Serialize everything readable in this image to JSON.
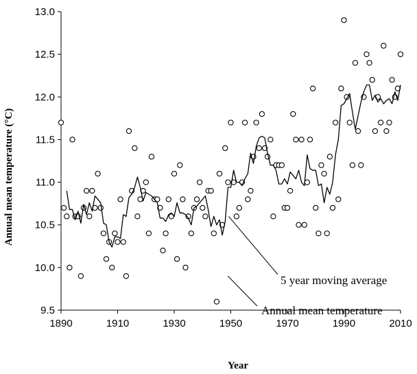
{
  "chart_data": {
    "type": "scatter",
    "title": "",
    "xlabel": "Year",
    "ylabel": "Annual mean temperature (°C)",
    "xlim": [
      1890,
      2010
    ],
    "ylim": [
      9.5,
      13.0
    ],
    "x_ticks": [
      "1890",
      "1910",
      "1930",
      "1950",
      "1970",
      "1990",
      "2010"
    ],
    "y_ticks": [
      "9.5",
      "10.0",
      "10.5",
      "11.0",
      "11.5",
      "12.0",
      "12.5",
      "13.0"
    ],
    "grid": false,
    "annotations": [
      {
        "text": "5 year moving average",
        "target": [
          1949,
          10.6
        ]
      },
      {
        "text": "Annual  mean temperature",
        "target": [
          1948,
          9.9
        ]
      }
    ],
    "series": [
      {
        "name": "Annual  mean temperature",
        "marker": "open-circle",
        "points": [
          [
            1890,
            11.7
          ],
          [
            1891,
            10.7
          ],
          [
            1892,
            10.6
          ],
          [
            1893,
            10.0
          ],
          [
            1894,
            11.5
          ],
          [
            1895,
            10.6
          ],
          [
            1896,
            10.6
          ],
          [
            1897,
            9.9
          ],
          [
            1898,
            10.7
          ],
          [
            1899,
            10.9
          ],
          [
            1900,
            10.6
          ],
          [
            1901,
            10.9
          ],
          [
            1902,
            10.7
          ],
          [
            1903,
            11.1
          ],
          [
            1904,
            10.7
          ],
          [
            1905,
            10.4
          ],
          [
            1906,
            10.1
          ],
          [
            1907,
            10.3
          ],
          [
            1908,
            10.0
          ],
          [
            1909,
            10.4
          ],
          [
            1910,
            10.3
          ],
          [
            1911,
            10.8
          ],
          [
            1912,
            10.3
          ],
          [
            1913,
            9.9
          ],
          [
            1914,
            11.6
          ],
          [
            1915,
            10.9
          ],
          [
            1916,
            11.4
          ],
          [
            1917,
            10.6
          ],
          [
            1918,
            10.8
          ],
          [
            1919,
            10.9
          ],
          [
            1920,
            11.0
          ],
          [
            1921,
            10.4
          ],
          [
            1922,
            11.3
          ],
          [
            1923,
            10.8
          ],
          [
            1924,
            10.8
          ],
          [
            1925,
            10.7
          ],
          [
            1926,
            10.2
          ],
          [
            1927,
            10.4
          ],
          [
            1928,
            10.8
          ],
          [
            1929,
            10.6
          ],
          [
            1930,
            11.1
          ],
          [
            1931,
            10.1
          ],
          [
            1932,
            11.2
          ],
          [
            1933,
            10.8
          ],
          [
            1934,
            10.0
          ],
          [
            1935,
            10.6
          ],
          [
            1936,
            10.4
          ],
          [
            1937,
            10.7
          ],
          [
            1938,
            10.8
          ],
          [
            1939,
            11.0
          ],
          [
            1940,
            10.7
          ],
          [
            1941,
            10.6
          ],
          [
            1942,
            10.9
          ],
          [
            1943,
            10.9
          ],
          [
            1944,
            10.4
          ],
          [
            1945,
            9.6
          ],
          [
            1946,
            11.1
          ],
          [
            1947,
            10.5
          ],
          [
            1948,
            11.4
          ],
          [
            1949,
            11.0
          ],
          [
            1950,
            11.7
          ],
          [
            1951,
            11.0
          ],
          [
            1952,
            10.6
          ],
          [
            1953,
            10.7
          ],
          [
            1954,
            11.0
          ],
          [
            1955,
            11.7
          ],
          [
            1956,
            10.8
          ],
          [
            1957,
            10.9
          ],
          [
            1958,
            11.3
          ],
          [
            1959,
            11.7
          ],
          [
            1960,
            11.4
          ],
          [
            1961,
            11.8
          ],
          [
            1962,
            11.4
          ],
          [
            1963,
            11.3
          ],
          [
            1964,
            11.5
          ],
          [
            1965,
            10.6
          ],
          [
            1966,
            11.2
          ],
          [
            1967,
            11.2
          ],
          [
            1968,
            11.2
          ],
          [
            1969,
            10.7
          ],
          [
            1970,
            10.7
          ],
          [
            1971,
            10.9
          ],
          [
            1972,
            11.8
          ],
          [
            1973,
            11.5
          ],
          [
            1974,
            10.5
          ],
          [
            1975,
            11.5
          ],
          [
            1976,
            10.5
          ],
          [
            1977,
            11.0
          ],
          [
            1978,
            11.5
          ],
          [
            1979,
            12.1
          ],
          [
            1980,
            10.7
          ],
          [
            1981,
            10.4
          ],
          [
            1982,
            11.2
          ],
          [
            1983,
            11.1
          ],
          [
            1984,
            10.4
          ],
          [
            1985,
            11.3
          ],
          [
            1986,
            10.7
          ],
          [
            1987,
            11.7
          ],
          [
            1988,
            10.8
          ],
          [
            1989,
            12.1
          ],
          [
            1990,
            12.9
          ],
          [
            1991,
            12.0
          ],
          [
            1992,
            11.7
          ],
          [
            1993,
            11.2
          ],
          [
            1994,
            12.4
          ],
          [
            1995,
            11.6
          ],
          [
            1996,
            11.2
          ],
          [
            1997,
            12.0
          ],
          [
            1998,
            12.5
          ],
          [
            1999,
            12.4
          ],
          [
            2000,
            12.2
          ],
          [
            2001,
            11.6
          ],
          [
            2002,
            12.0
          ],
          [
            2003,
            11.7
          ],
          [
            2004,
            12.6
          ],
          [
            2005,
            11.6
          ],
          [
            2006,
            11.7
          ],
          [
            2007,
            12.2
          ],
          [
            2008,
            12.0
          ],
          [
            2009,
            12.1
          ],
          [
            2010,
            12.5
          ]
        ]
      },
      {
        "name": "5 year moving average",
        "marker": "line",
        "points": [
          [
            1892,
            10.9
          ],
          [
            1893,
            10.68
          ],
          [
            1894,
            10.68
          ],
          [
            1895,
            10.56
          ],
          [
            1896,
            10.66
          ],
          [
            1897,
            10.52
          ],
          [
            1898,
            10.74
          ],
          [
            1899,
            10.62
          ],
          [
            1900,
            10.76
          ],
          [
            1901,
            10.66
          ],
          [
            1902,
            10.84
          ],
          [
            1903,
            10.8
          ],
          [
            1904,
            10.76
          ],
          [
            1905,
            10.52
          ],
          [
            1906,
            10.5
          ],
          [
            1907,
            10.3
          ],
          [
            1908,
            10.24
          ],
          [
            1909,
            10.36
          ],
          [
            1910,
            10.36
          ],
          [
            1911,
            10.34
          ],
          [
            1912,
            10.62
          ],
          [
            1913,
            10.6
          ],
          [
            1914,
            10.82
          ],
          [
            1915,
            10.86
          ],
          [
            1916,
            10.94
          ],
          [
            1917,
            11.06
          ],
          [
            1918,
            10.94
          ],
          [
            1919,
            10.78
          ],
          [
            1920,
            10.88
          ],
          [
            1921,
            10.86
          ],
          [
            1922,
            10.84
          ],
          [
            1923,
            10.8
          ],
          [
            1924,
            10.76
          ],
          [
            1925,
            10.58
          ],
          [
            1926,
            10.58
          ],
          [
            1927,
            10.54
          ],
          [
            1928,
            10.62
          ],
          [
            1929,
            10.64
          ],
          [
            1930,
            10.6
          ],
          [
            1931,
            10.76
          ],
          [
            1932,
            10.64
          ],
          [
            1933,
            10.64
          ],
          [
            1934,
            10.62
          ],
          [
            1935,
            10.58
          ],
          [
            1936,
            10.5
          ],
          [
            1937,
            10.7
          ],
          [
            1938,
            10.72
          ],
          [
            1939,
            10.76
          ],
          [
            1940,
            10.8
          ],
          [
            1941,
            10.84
          ],
          [
            1942,
            10.68
          ],
          [
            1943,
            10.48
          ],
          [
            1944,
            10.6
          ],
          [
            1945,
            10.5
          ],
          [
            1946,
            10.56
          ],
          [
            1947,
            10.38
          ],
          [
            1948,
            10.54
          ],
          [
            1949,
            10.94
          ],
          [
            1950,
            10.94
          ],
          [
            1951,
            11.14
          ],
          [
            1952,
            11.0
          ],
          [
            1953,
            11.0
          ],
          [
            1954,
            10.96
          ],
          [
            1955,
            11.04
          ],
          [
            1956,
            11.1
          ],
          [
            1957,
            11.34
          ],
          [
            1958,
            11.22
          ],
          [
            1959,
            11.42
          ],
          [
            1960,
            11.52
          ],
          [
            1961,
            11.54
          ],
          [
            1962,
            11.52
          ],
          [
            1963,
            11.34
          ],
          [
            1964,
            11.2
          ],
          [
            1965,
            11.2
          ],
          [
            1966,
            11.14
          ],
          [
            1967,
            10.98
          ],
          [
            1968,
            10.98
          ],
          [
            1969,
            11.04
          ],
          [
            1970,
            10.98
          ],
          [
            1971,
            11.12
          ],
          [
            1972,
            11.08
          ],
          [
            1973,
            11.04
          ],
          [
            1974,
            11.14
          ],
          [
            1975,
            11.0
          ],
          [
            1976,
            10.96
          ],
          [
            1977,
            11.32
          ],
          [
            1978,
            11.16
          ],
          [
            1979,
            11.14
          ],
          [
            1980,
            11.14
          ],
          [
            1981,
            10.96
          ],
          [
            1982,
            10.98
          ],
          [
            1983,
            10.76
          ],
          [
            1984,
            10.94
          ],
          [
            1985,
            10.86
          ],
          [
            1986,
            11.0
          ],
          [
            1987,
            11.32
          ],
          [
            1988,
            11.5
          ],
          [
            1989,
            11.9
          ],
          [
            1990,
            11.92
          ],
          [
            1991,
            11.98
          ],
          [
            1992,
            12.04
          ],
          [
            1993,
            11.82
          ],
          [
            1994,
            11.62
          ],
          [
            1995,
            11.78
          ],
          [
            1996,
            11.94
          ],
          [
            1997,
            12.06
          ],
          [
            1998,
            12.14
          ],
          [
            1999,
            12.14
          ],
          [
            2000,
            11.96
          ],
          [
            2001,
            12.02
          ],
          [
            2002,
            11.94
          ],
          [
            2003,
            11.98
          ],
          [
            2004,
            11.92
          ],
          [
            2005,
            11.96
          ],
          [
            2006,
            11.98
          ],
          [
            2007,
            11.92
          ],
          [
            2008,
            12.06
          ],
          [
            2009,
            11.96
          ],
          [
            2010,
            12.14
          ]
        ]
      }
    ]
  }
}
